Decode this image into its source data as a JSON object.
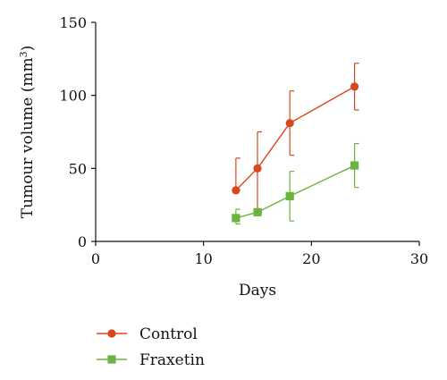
{
  "chart_data": {
    "type": "line",
    "xlabel": "Days",
    "ylabel": "Tumour volume (mm",
    "ylabel_sup": "3",
    "ylabel_close": ")",
    "xlim": [
      0,
      30
    ],
    "ylim": [
      0,
      150
    ],
    "xticks": [
      0,
      10,
      20,
      30
    ],
    "yticks": [
      0,
      50,
      100,
      150
    ],
    "grid": false,
    "legend_position": "bottom-left",
    "series": [
      {
        "name": "Control",
        "marker": "circle",
        "color": "#d9481c",
        "points": [
          {
            "x": 13,
            "y": 35,
            "err_low": 35,
            "err_high": 57
          },
          {
            "x": 15,
            "y": 50,
            "err_low": 20,
            "err_high": 75
          },
          {
            "x": 18,
            "y": 81,
            "err_low": 59,
            "err_high": 103
          },
          {
            "x": 24,
            "y": 106,
            "err_low": 90,
            "err_high": 122
          }
        ]
      },
      {
        "name": "Fraxetin",
        "marker": "square",
        "color": "#6ab33e",
        "points": [
          {
            "x": 13,
            "y": 16,
            "err_low": 12,
            "err_high": 22
          },
          {
            "x": 15,
            "y": 20,
            "err_low": 19,
            "err_high": 21
          },
          {
            "x": 18,
            "y": 31,
            "err_low": 14,
            "err_high": 48
          },
          {
            "x": 24,
            "y": 52,
            "err_low": 37,
            "err_high": 67
          }
        ]
      }
    ]
  }
}
